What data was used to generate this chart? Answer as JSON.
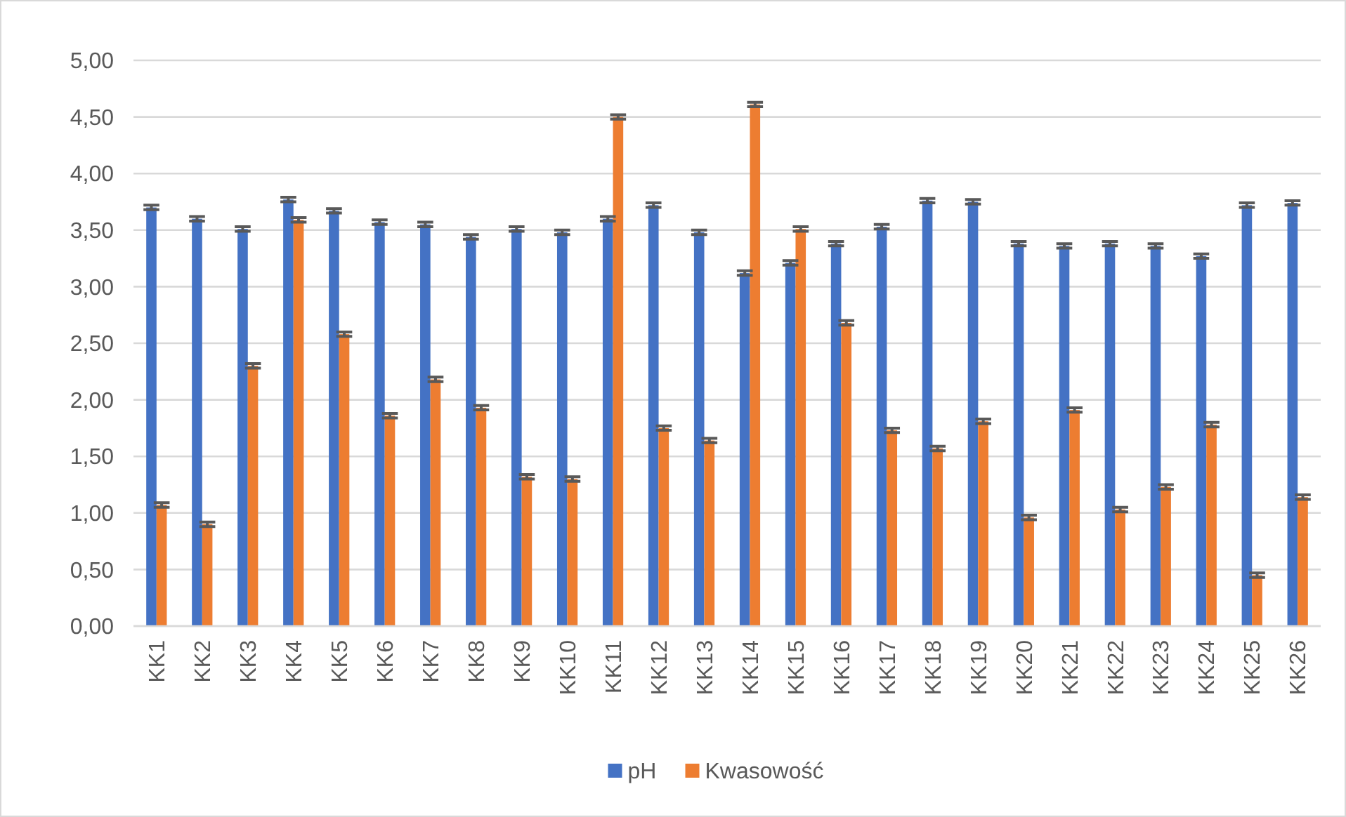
{
  "chart_data": {
    "type": "bar",
    "categories": [
      "KK1",
      "KK2",
      "KK3",
      "KK4",
      "KK5",
      "KK6",
      "KK7",
      "KK8",
      "KK9",
      "KK10",
      "KK11",
      "KK12",
      "KK13",
      "KK14",
      "KK15",
      "KK16",
      "KK17",
      "KK18",
      "KK19",
      "KK20",
      "KK21",
      "KK22",
      "KK23",
      "KK24",
      "KK25",
      "KK26"
    ],
    "series": [
      {
        "name": "pH",
        "color": "#4472c4",
        "values": [
          3.7,
          3.6,
          3.51,
          3.77,
          3.67,
          3.57,
          3.55,
          3.44,
          3.51,
          3.48,
          3.6,
          3.72,
          3.48,
          3.12,
          3.21,
          3.38,
          3.53,
          3.76,
          3.75,
          3.38,
          3.36,
          3.38,
          3.36,
          3.27,
          3.72,
          3.74
        ],
        "errors": [
          0.02,
          0.02,
          0.02,
          0.02,
          0.02,
          0.02,
          0.02,
          0.02,
          0.02,
          0.02,
          0.02,
          0.02,
          0.02,
          0.02,
          0.02,
          0.02,
          0.02,
          0.02,
          0.02,
          0.02,
          0.02,
          0.02,
          0.02,
          0.02,
          0.02,
          0.02
        ]
      },
      {
        "name": "Kwasowość",
        "color": "#ed7d31",
        "values": [
          1.07,
          0.9,
          2.3,
          3.59,
          2.58,
          1.86,
          2.18,
          1.93,
          1.32,
          1.3,
          4.5,
          1.75,
          1.64,
          4.61,
          3.51,
          2.68,
          1.73,
          1.57,
          1.81,
          0.96,
          1.91,
          1.03,
          1.23,
          1.78,
          0.45,
          1.14
        ],
        "errors": [
          0.02,
          0.02,
          0.02,
          0.02,
          0.02,
          0.02,
          0.02,
          0.02,
          0.02,
          0.02,
          0.02,
          0.02,
          0.02,
          0.02,
          0.02,
          0.02,
          0.02,
          0.02,
          0.02,
          0.02,
          0.02,
          0.02,
          0.02,
          0.02,
          0.02,
          0.02
        ]
      }
    ],
    "ylim": [
      0,
      5
    ],
    "yticks": [
      {
        "value": 0,
        "label": "0,00"
      },
      {
        "value": 0.5,
        "label": "0,50"
      },
      {
        "value": 1,
        "label": "1,00"
      },
      {
        "value": 1.5,
        "label": "1,50"
      },
      {
        "value": 2,
        "label": "2,00"
      },
      {
        "value": 2.5,
        "label": "2,50"
      },
      {
        "value": 3,
        "label": "3,00"
      },
      {
        "value": 3.5,
        "label": "3,50"
      },
      {
        "value": 4,
        "label": "4,00"
      },
      {
        "value": 4.5,
        "label": "4,50"
      },
      {
        "value": 5,
        "label": "5,00"
      }
    ],
    "grid": "y",
    "legend": "bottom"
  }
}
